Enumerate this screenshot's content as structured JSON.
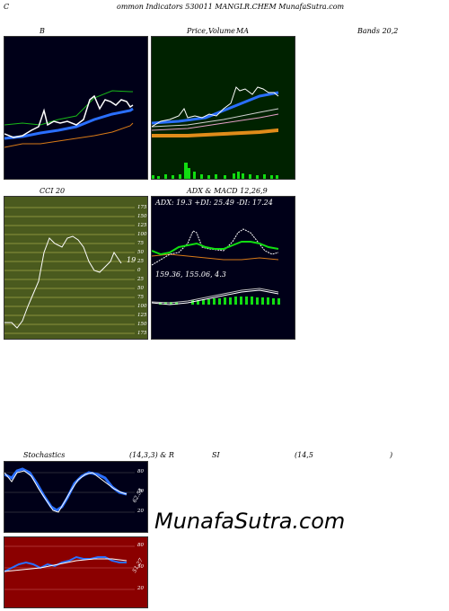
{
  "header": {
    "title": "ommon Indicators 530011 MANGLR.CHEM MunafaSutra.com",
    "prefix": "C"
  },
  "labels": {
    "bollinger": "B",
    "price_volume_ma": "Price,",
    "volume_overlay": "Volume",
    "price_ma_suffix": "MA",
    "bands": "Bands 20,2",
    "cci": "CCI 20",
    "adx_macd": "ADX  & MACD 12,26,9",
    "adx_values": "ADX: 19.3  +DI: 25.49 -DI: 17.24",
    "macd_values": "159.36,   155.06,   4.3",
    "cci_value": "19",
    "stoch_a": "Stochastics",
    "stoch_b": "(14,3,3) & R",
    "stoch_c": "SI",
    "stoch_d": "(14,5",
    "stoch_e": ")",
    "stoch_value": "62.54",
    "rsi_value": "51.27"
  },
  "cci_ticks": [
    "175",
    "150",
    "125",
    "100",
    "75",
    "50",
    "25",
    "0",
    "25",
    "50",
    "75",
    "100",
    "125",
    "150",
    "175"
  ],
  "stoch_ticks": [
    "80",
    "50",
    "20"
  ],
  "rsi_ticks": [
    "80",
    "50",
    "20"
  ],
  "watermark": "MunafaSutra.com",
  "colors": {
    "dark_navy": "#000018",
    "dark_green": "#002200",
    "cci_olive": "#4a5a1e",
    "rsi_red": "#8b0000",
    "accent_blue": "#2a6fff"
  }
}
